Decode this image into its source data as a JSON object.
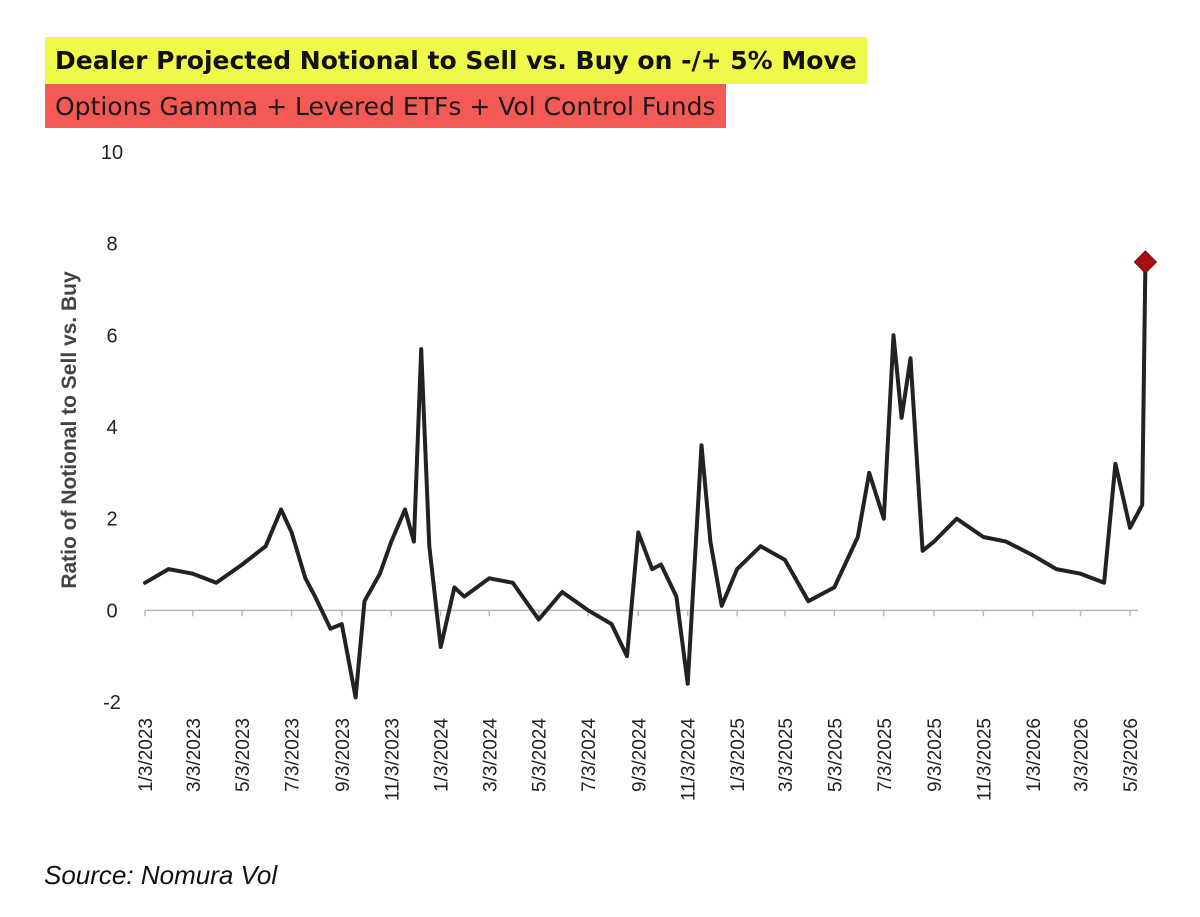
{
  "header": {
    "title": "Dealer Projected Notional to Sell vs. Buy on -/+ 5% Move",
    "subtitle": "Options Gamma + Levered ETFs + Vol Control Funds",
    "source": "Source: Nomura Vol"
  },
  "colors": {
    "title_bg": "#eef94a",
    "subtitle_bg": "#f45a55",
    "line": "#222222",
    "marker": "#a80f0f"
  },
  "chart_data": {
    "type": "line",
    "ylabel": "Ratio of Notional to Sell vs. Buy",
    "xlabel": "",
    "ylim": [
      -2,
      10
    ],
    "yticks": [
      "-2",
      "0",
      "2",
      "4",
      "6",
      "8",
      "10"
    ],
    "xtick_labels": [
      "1/3/2023",
      "3/3/2023",
      "5/3/2023",
      "7/3/2023",
      "9/3/2023",
      "11/3/2023",
      "1/3/2024",
      "3/3/2024",
      "5/3/2024",
      "7/3/2024",
      "9/3/2024",
      "11/3/2024",
      "1/3/2025",
      "3/3/2025",
      "5/3/2025",
      "7/3/2025",
      "9/3/2025",
      "11/3/2025",
      "1/3/2026",
      "3/3/2026",
      "5/3/2026"
    ],
    "grid": false,
    "legend": "none",
    "series": [
      {
        "x": [
          "1/3/2023",
          "2/1/2023",
          "3/3/2023",
          "4/1/2023",
          "5/3/2023",
          "6/1/2023",
          "6/20/2023",
          "7/3/2023",
          "7/20/2023",
          "8/1/2023",
          "8/20/2023",
          "9/3/2023",
          "9/20/2023",
          "10/1/2023",
          "10/20/2023",
          "11/3/2023",
          "11/20/2023",
          "12/1/2023",
          "12/10/2023",
          "12/20/2023",
          "1/3/2024",
          "1/20/2024",
          "2/1/2024",
          "3/3/2024",
          "4/1/2024",
          "5/3/2024",
          "6/1/2024",
          "7/3/2024",
          "8/1/2024",
          "8/20/2024",
          "9/3/2024",
          "9/20/2024",
          "10/1/2024",
          "10/20/2024",
          "11/3/2024",
          "11/20/2024",
          "12/1/2024",
          "12/15/2024",
          "1/3/2025",
          "2/1/2025",
          "3/3/2025",
          "4/1/2025",
          "5/3/2025",
          "6/1/2025",
          "6/15/2025",
          "7/3/2025",
          "7/15/2025",
          "7/25/2025",
          "8/5/2025",
          "8/20/2025",
          "9/3/2025",
          "10/1/2025",
          "11/3/2025",
          "12/1/2025",
          "1/3/2026",
          "2/1/2026",
          "3/3/2026",
          "4/1/2026",
          "4/15/2026",
          "5/3/2026",
          "5/18/2026",
          "5/22/2026"
        ],
        "y": [
          0.6,
          0.9,
          0.8,
          0.6,
          1.0,
          1.4,
          2.2,
          1.7,
          0.7,
          0.3,
          -0.4,
          -0.3,
          -1.9,
          0.2,
          0.8,
          1.5,
          2.2,
          1.5,
          5.7,
          1.4,
          -0.8,
          0.5,
          0.3,
          0.7,
          0.6,
          -0.2,
          0.4,
          0.0,
          -0.3,
          -1.0,
          1.7,
          0.9,
          1.0,
          0.3,
          -1.6,
          3.6,
          1.5,
          0.1,
          0.9,
          1.4,
          1.1,
          0.2,
          0.5,
          1.6,
          3.0,
          2.0,
          6.0,
          4.2,
          5.5,
          1.3,
          1.5,
          2.0,
          1.6,
          1.5,
          1.2,
          0.9,
          0.8,
          0.6,
          3.2,
          1.8,
          2.3,
          7.6
        ]
      }
    ],
    "highlight_point": {
      "x": "5/22/2026",
      "y": 7.6
    }
  }
}
